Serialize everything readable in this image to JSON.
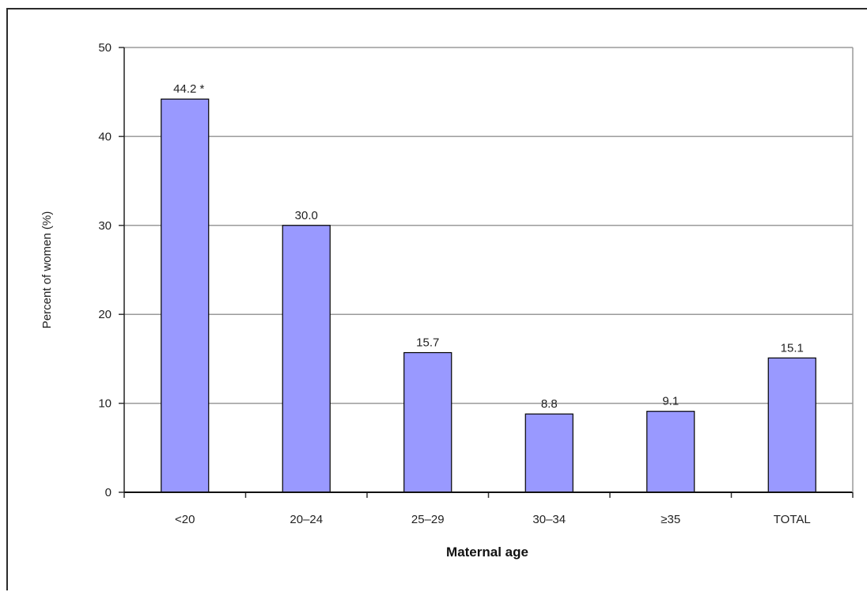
{
  "chart_data": {
    "type": "bar",
    "categories": [
      "<20",
      "20–24",
      "25–29",
      "30–34",
      "≥35",
      "TOTAL"
    ],
    "values": [
      44.2,
      30.0,
      15.7,
      8.8,
      9.1,
      15.1
    ],
    "data_labels": [
      "44.2 *",
      "30.0",
      "15.7",
      "8.8",
      "9.1",
      "15.1"
    ],
    "xlabel": "Maternal age",
    "ylabel": "Percent of women (%)",
    "ylim": [
      0,
      50
    ],
    "yticks": [
      0,
      10,
      20,
      30,
      40,
      50
    ],
    "grid": true,
    "bar_color": "#9999ff",
    "bar_edge_color": "#000000"
  }
}
